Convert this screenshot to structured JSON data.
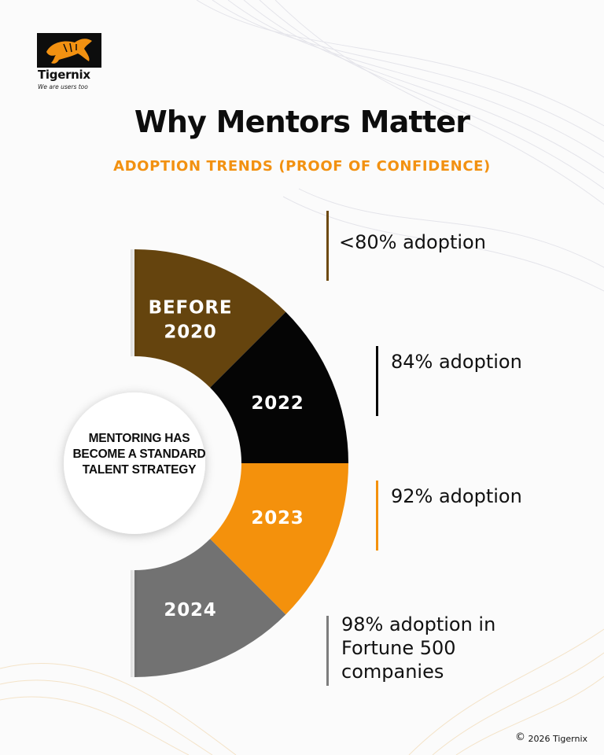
{
  "brand": {
    "name": "Tigernix",
    "tagline": "We are users too",
    "logo_icon": "tiger-icon",
    "logo_bg": "#0d0d0d",
    "logo_accent": "#f29111"
  },
  "header": {
    "title": "Why Mentors Matter",
    "subtitle": "ADOPTION TRENDS (PROOF OF CONFIDENCE)"
  },
  "center": {
    "text": "MENTORING HAS BECOME A STANDARD TALENT STRATEGY"
  },
  "segments": [
    {
      "label_lines": [
        "BEFORE",
        "2020"
      ],
      "color": "#65440e"
    },
    {
      "label_lines": [
        "2022"
      ],
      "color": "#050505"
    },
    {
      "label_lines": [
        "2023"
      ],
      "color": "#f4910c"
    },
    {
      "label_lines": [
        "2024"
      ],
      "color": "#727272"
    }
  ],
  "stats": [
    {
      "text": "<80% adoption",
      "color": "#6e4a10"
    },
    {
      "text": "84% adoption",
      "color": "#050505"
    },
    {
      "text": "92% adoption",
      "color": "#f4910c"
    },
    {
      "text": "98% adoption in Fortune 500 companies",
      "color": "#7d7d7d"
    }
  ],
  "footer": {
    "copyright_symbol": "©",
    "text": "2026 Tigernix"
  }
}
